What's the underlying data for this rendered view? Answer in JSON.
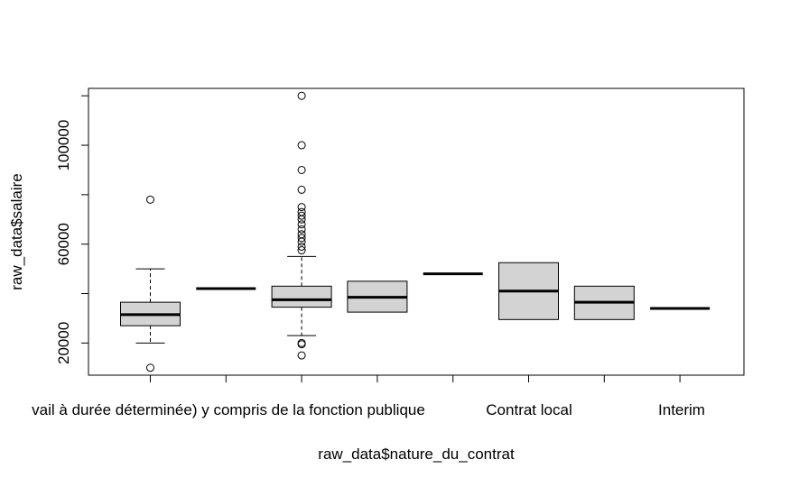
{
  "chart_data": {
    "type": "box",
    "xlabel": "raw_data$nature_du_contrat",
    "ylabel": "raw_data$salaire",
    "ylim": [
      7000,
      123000
    ],
    "yticks": [
      20000,
      60000,
      100000
    ],
    "ytick_labels": [
      "20000",
      "60000",
      "100000"
    ],
    "grid": false,
    "categories": [
      "CDD (Contrat de travail à durée déterminée) y compris de la fonction publique",
      "",
      "",
      "",
      "",
      "Contrat local",
      "",
      "Interim"
    ],
    "visible_tick_labels": [
      "vail à durée déterminée) y compris de la fonction publique",
      "Contrat local",
      "Interim"
    ],
    "boxes": [
      {
        "q1": 27000,
        "median": 31500,
        "q3": 36500,
        "whisker_low": 20000,
        "whisker_high": 50000,
        "outliers": [
          10000,
          78000
        ]
      },
      {
        "q1": 42000,
        "median": 42000,
        "q3": 42000,
        "whisker_low": 42000,
        "whisker_high": 42000,
        "outliers": []
      },
      {
        "q1": 34500,
        "median": 37500,
        "q3": 43000,
        "whisker_low": 23000,
        "whisker_high": 55000,
        "outliers": [
          15000,
          19500,
          20000,
          57500,
          59000,
          61000,
          62500,
          64000,
          66000,
          68000,
          70000,
          71500,
          73000,
          75000,
          82000,
          90000,
          100000,
          120000
        ]
      },
      {
        "q1": 32500,
        "median": 38500,
        "q3": 45000,
        "whisker_low": 32500,
        "whisker_high": 45000,
        "outliers": []
      },
      {
        "q1": 48000,
        "median": 48000,
        "q3": 48000,
        "whisker_low": 48000,
        "whisker_high": 48000,
        "outliers": []
      },
      {
        "q1": 29500,
        "median": 41000,
        "q3": 52500,
        "whisker_low": 29500,
        "whisker_high": 52500,
        "outliers": []
      },
      {
        "q1": 29500,
        "median": 36500,
        "q3": 43000,
        "whisker_low": 29500,
        "whisker_high": 43000,
        "outliers": []
      },
      {
        "q1": 34000,
        "median": 34000,
        "q3": 34000,
        "whisker_low": 34000,
        "whisker_high": 34000,
        "outliers": []
      }
    ],
    "box_fill": "#d3d3d3",
    "line_color": "#000000"
  }
}
